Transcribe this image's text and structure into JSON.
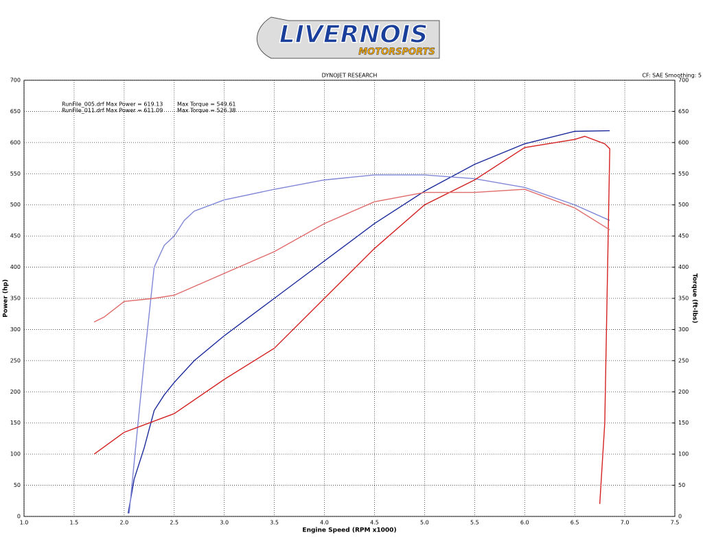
{
  "logo": {
    "line1": "LIVERNOIS",
    "line2": "MOTORSPORTS"
  },
  "chart_data": {
    "type": "line",
    "title": "DYNOJET RESEARCH",
    "subtitle": "CF: SAE  Smoothing: 5",
    "xlabel": "Engine Speed (RPM x1000)",
    "ylabel": "Power (hp)",
    "y2label": "Torque (ft-lbs)",
    "annotations": [
      [
        "RunFile_005.drf Max Power = 619.13",
        "Max Torque = 549.61"
      ],
      [
        "RunFile_011.drf Max Power = 611.09",
        "Max Torque = 526.38"
      ]
    ],
    "xlim": [
      1.0,
      7.5
    ],
    "xticks": [
      {
        "value": 1.0,
        "label": "1.0"
      },
      1.5,
      {
        "value": 2.0,
        "label": "2.0"
      },
      2.5,
      {
        "value": 3.0,
        "label": "3.0"
      },
      3.5,
      {
        "value": 4.0,
        "label": "4.0"
      },
      4.5,
      {
        "value": 5.0,
        "label": "5.0"
      },
      5.5,
      {
        "value": 6.0,
        "label": "6.0"
      },
      6.5,
      {
        "value": 7.0,
        "label": "7.0"
      },
      7.5
    ],
    "ylim": [
      0,
      700
    ],
    "yticks": [
      0,
      50,
      100,
      150,
      200,
      250,
      300,
      350,
      400,
      450,
      500,
      550,
      600,
      650,
      700
    ],
    "y2lim": [
      0,
      700
    ],
    "y2ticks": [
      0,
      50,
      100,
      150,
      200,
      250,
      300,
      350,
      400,
      450,
      500,
      550,
      600,
      650,
      700
    ],
    "grid": true,
    "series": [
      {
        "color": "#1a2a9a",
        "x": [
          2.04,
          2.1,
          2.2,
          2.3,
          2.4,
          2.5,
          2.7,
          3.0,
          3.5,
          4.0,
          4.5,
          5.0,
          5.5,
          6.0,
          6.5,
          6.85
        ],
        "values": [
          5,
          60,
          110,
          170,
          195,
          215,
          250,
          290,
          350,
          410,
          470,
          522,
          565,
          598,
          618,
          619
        ]
      },
      {
        "color": "#7f86d6",
        "axis": "y2",
        "x": [
          2.05,
          2.2,
          2.3,
          2.4,
          2.5,
          2.6,
          2.7,
          3.0,
          3.5,
          4.0,
          4.5,
          5.0,
          5.5,
          6.0,
          6.5,
          6.85
        ],
        "values": [
          5,
          250,
          400,
          435,
          450,
          475,
          490,
          508,
          525,
          540,
          548,
          548,
          542,
          528,
          500,
          475
        ]
      },
      {
        "color": "#d42020",
        "x": [
          1.7,
          2.0,
          2.5,
          3.0,
          3.5,
          4.0,
          4.5,
          5.0,
          5.5,
          6.0,
          6.5,
          6.6,
          6.8,
          6.85,
          6.8,
          6.75
        ],
        "values": [
          100,
          135,
          165,
          220,
          270,
          350,
          430,
          500,
          540,
          592,
          605,
          610,
          598,
          590,
          150,
          20
        ]
      },
      {
        "color": "#e06a6a",
        "axis": "y2",
        "x": [
          1.7,
          1.8,
          2.0,
          2.3,
          2.5,
          3.0,
          3.5,
          4.0,
          4.5,
          5.0,
          5.5,
          6.0,
          6.5,
          6.85
        ],
        "values": [
          312,
          320,
          345,
          350,
          355,
          390,
          425,
          470,
          505,
          520,
          520,
          525,
          495,
          460
        ]
      }
    ]
  }
}
